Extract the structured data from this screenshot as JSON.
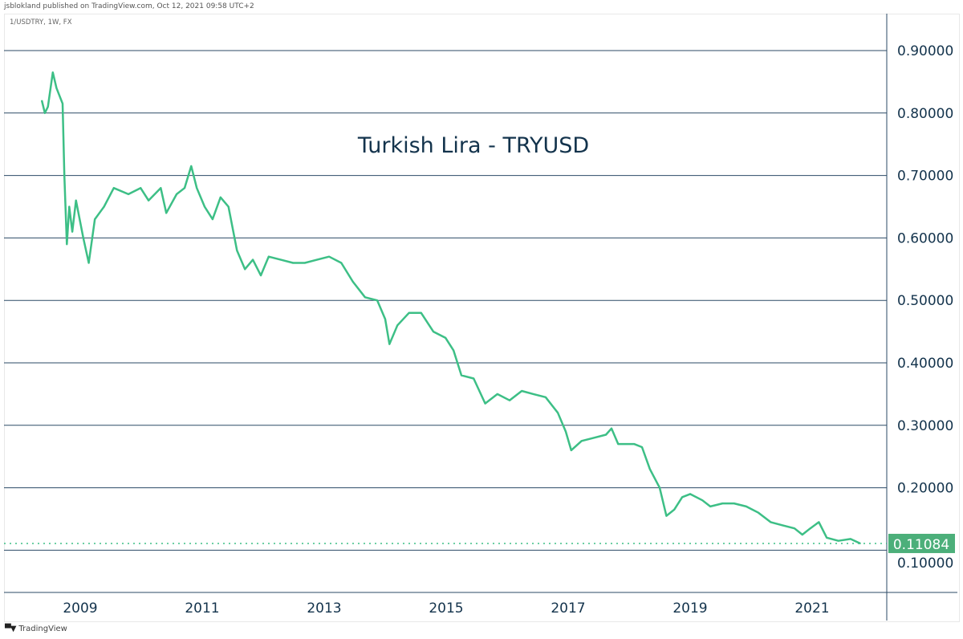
{
  "header": {
    "published": "jsblokland published on TradingView.com, Oct 12, 2021 09:58 UTC+2"
  },
  "symbol_info": "1/USDTRY, 1W, FX",
  "footer": {
    "brand": "TradingView",
    "logo_text": "TV"
  },
  "colors": {
    "line": "#3dbf86",
    "grid": "#2b4a66",
    "text": "#13334c",
    "price_label": "#4caf7a"
  },
  "chart_data": {
    "type": "line",
    "title": "Turkish Lira - TRYUSD",
    "xlabel": "",
    "ylabel": "",
    "xlim": [
      2008.0,
      2022.3
    ],
    "ylim": [
      0.03,
      0.95
    ],
    "grid": true,
    "x_ticks": [
      "2009",
      "2011",
      "2013",
      "2015",
      "2017",
      "2019",
      "2021"
    ],
    "y_ticks": [
      "0.90000",
      "0.80000",
      "0.70000",
      "0.60000",
      "0.50000",
      "0.40000",
      "0.30000",
      "0.20000",
      "0.10000"
    ],
    "last_price": "0.11084",
    "series": [
      {
        "x": [
          2008.37,
          2008.42,
          2008.47,
          2008.55,
          2008.61,
          2008.71,
          2008.74,
          2008.78,
          2008.82,
          2008.87,
          2008.93,
          2009.05,
          2009.14,
          2009.24,
          2009.39,
          2009.55,
          2009.79,
          2009.99,
          2010.12,
          2010.32,
          2010.41,
          2010.58,
          2010.71,
          2010.82,
          2010.91,
          2011.04,
          2011.17,
          2011.3,
          2011.43,
          2011.57,
          2011.7,
          2011.83,
          2011.96,
          2012.09,
          2012.29,
          2012.49,
          2012.68,
          2012.88,
          2013.08,
          2013.28,
          2013.47,
          2013.67,
          2013.87,
          2014.0,
          2014.07,
          2014.2,
          2014.39,
          2014.59,
          2014.79,
          2014.99,
          2015.12,
          2015.25,
          2015.45,
          2015.64,
          2015.84,
          2016.04,
          2016.24,
          2016.43,
          2016.63,
          2016.83,
          2016.96,
          2017.05,
          2017.22,
          2017.42,
          2017.62,
          2017.71,
          2017.82,
          2017.95,
          2018.08,
          2018.21,
          2018.34,
          2018.5,
          2018.61,
          2018.74,
          2018.87,
          2019.0,
          2019.2,
          2019.33,
          2019.53,
          2019.72,
          2019.92,
          2020.12,
          2020.32,
          2020.51,
          2020.71,
          2020.84,
          2020.97,
          2021.11,
          2021.24,
          2021.43,
          2021.63,
          2021.79
        ],
        "y": [
          0.82,
          0.8,
          0.81,
          0.865,
          0.84,
          0.815,
          0.7,
          0.59,
          0.65,
          0.61,
          0.66,
          0.6,
          0.56,
          0.63,
          0.65,
          0.68,
          0.67,
          0.68,
          0.66,
          0.68,
          0.64,
          0.67,
          0.68,
          0.715,
          0.68,
          0.65,
          0.63,
          0.665,
          0.65,
          0.58,
          0.55,
          0.565,
          0.54,
          0.57,
          0.565,
          0.56,
          0.56,
          0.565,
          0.57,
          0.56,
          0.53,
          0.505,
          0.5,
          0.47,
          0.43,
          0.46,
          0.48,
          0.48,
          0.45,
          0.44,
          0.42,
          0.38,
          0.375,
          0.335,
          0.35,
          0.34,
          0.355,
          0.35,
          0.345,
          0.32,
          0.29,
          0.26,
          0.275,
          0.28,
          0.285,
          0.295,
          0.27,
          0.27,
          0.27,
          0.265,
          0.23,
          0.2,
          0.155,
          0.165,
          0.185,
          0.19,
          0.18,
          0.17,
          0.175,
          0.175,
          0.17,
          0.16,
          0.145,
          0.14,
          0.135,
          0.125,
          0.135,
          0.145,
          0.12,
          0.115,
          0.118,
          0.11084
        ]
      }
    ]
  }
}
